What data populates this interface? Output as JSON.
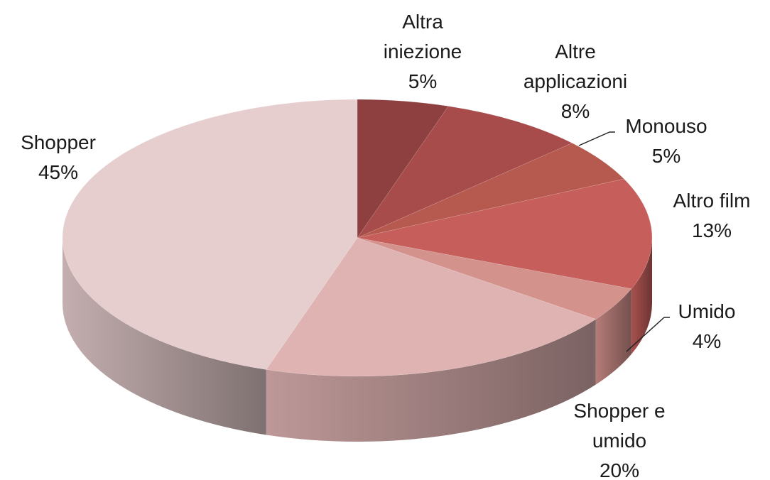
{
  "chart_data": {
    "type": "pie3d",
    "categories": [
      "Altra iniezione",
      "Altre applicazioni",
      "Monouso",
      "Altro film",
      "Umido",
      "Shopper e umido",
      "Shopper"
    ],
    "values": [
      5,
      8,
      5,
      13,
      4,
      20,
      45
    ],
    "value_labels": [
      "5%",
      "8%",
      "5%",
      "13%",
      "4%",
      "20%",
      "45%"
    ],
    "colors": [
      "#8e4040",
      "#a84b4b",
      "#b65a4f",
      "#c65f5c",
      "#d4928d",
      "#e0b3b3",
      "#e6cdce"
    ]
  }
}
